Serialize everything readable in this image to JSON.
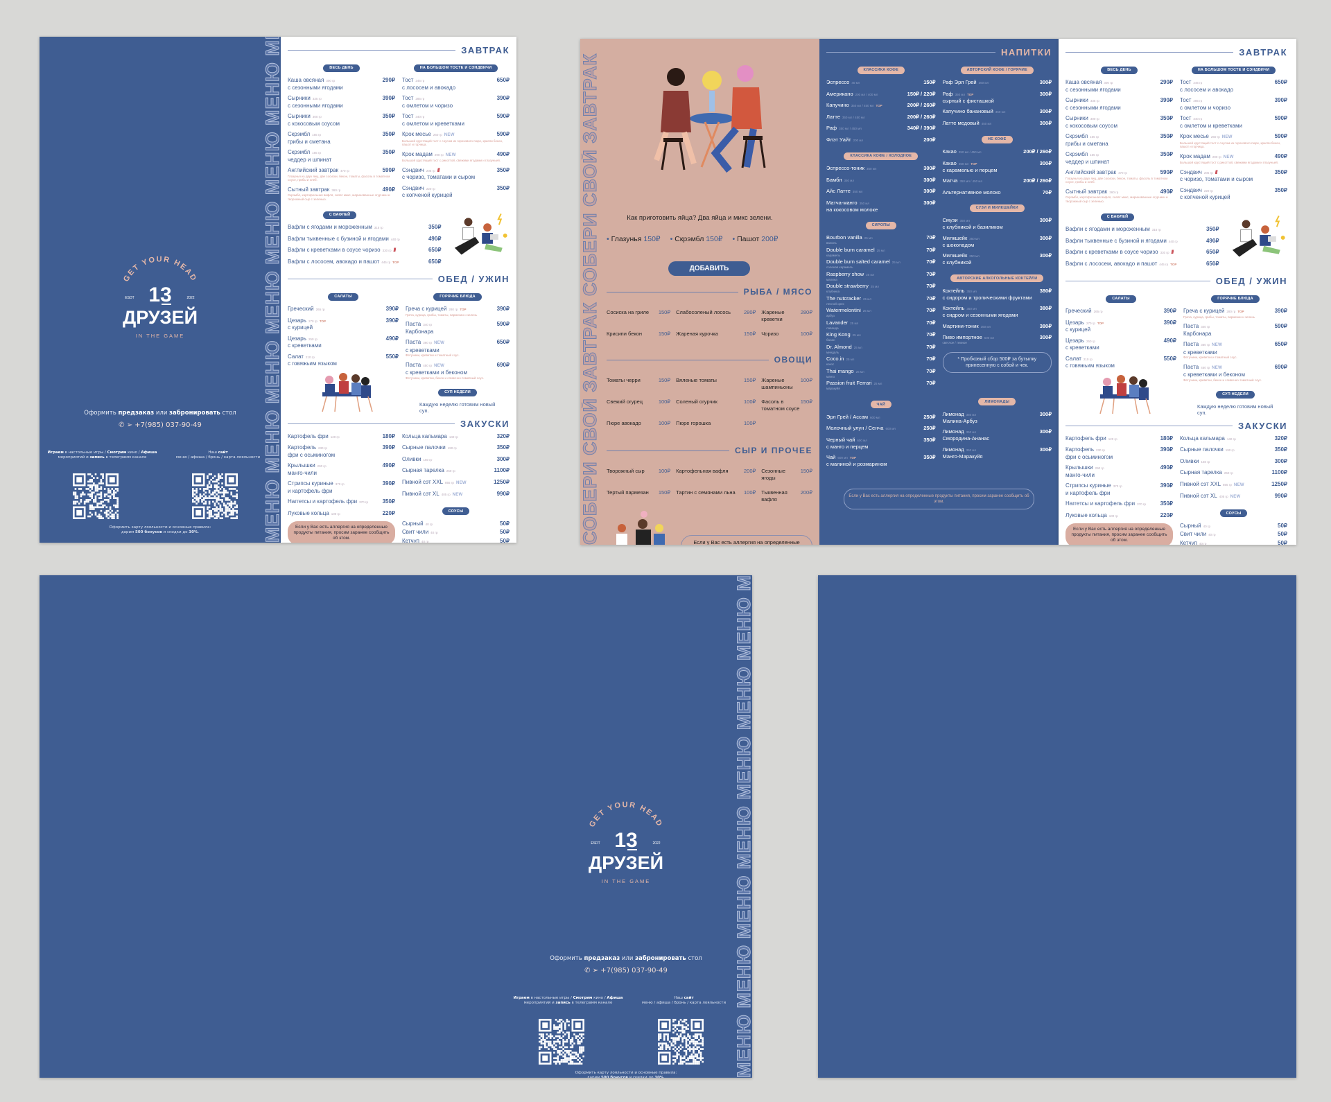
{
  "colors": {
    "brand_blue": "#3f5d92",
    "tan": "#d4aea1",
    "accent_pink": "#e4b7a8",
    "background": "#d8d8d6"
  },
  "brand": {
    "arc": "GET YOUR HEAD",
    "number": "13",
    "name": "ДРУЗЕЙ",
    "est": "ESDT",
    "year": "2022",
    "tagline": "IN THE GAME"
  },
  "strips": {
    "menu": "МЕНЮ МЕНЮ МЕНЮ МЕНЮ МЕНЮ МЕНЮ МЕНЮ МЕНЮ",
    "breakfast": "СОБЕРИ СВОЙ ЗАВТРАК СОБЕРИ СВОЙ ЗАВТРАК"
  },
  "cover": {
    "order": {
      "a": "Оформить ",
      "b": "предзаказ",
      "c": " или ",
      "d": "забронировать",
      "e": " стол"
    },
    "contact_icons": [
      "whatsapp-icon",
      "telegram-icon"
    ],
    "phone": "+7(985) 037-90-49",
    "left_caption": {
      "a": "Играем",
      "b": " в настольные игры / ",
      "c": "Смотрим",
      "d": " кино / ",
      "e": "Афиша",
      "f": " мероприятий и ",
      "g": "запись",
      "h": " в телеграмм канале"
    },
    "right_caption": {
      "a": "Наш ",
      "b": "сайт",
      "c": "меню / афиша / бронь / карта лояльности"
    },
    "loyalty": {
      "a": "Оформить карту лояльности и основные правила:",
      "b": "дарим ",
      "c": "500 бонусов",
      "d": " и скидки до ",
      "e": "30%",
      "f": "."
    }
  },
  "food_menu": {
    "breakfast": {
      "title": "ЗАВТРАК",
      "all_day": {
        "pill": "ВЕСЬ ДЕНЬ",
        "items": [
          {
            "n": "Каша овсяная",
            "w": "300 гр",
            "p": "290₽",
            "s": "с сезонными ягодами"
          },
          {
            "n": "Сырники",
            "w": "335 гр",
            "p": "390₽",
            "s": "с сезонными ягодами"
          },
          {
            "n": "Сырники",
            "w": "300 гр",
            "p": "350₽",
            "s": "с кокосовым соусом"
          },
          {
            "n": "Скрэмбл",
            "w": "165 гр",
            "p": "350₽",
            "s": "грибы и сметана"
          },
          {
            "n": "Скрэмбл",
            "w": "165 гр",
            "p": "350₽",
            "s": "чеддер и шпинат"
          },
          {
            "n": "Английский завтрак",
            "w": "470 гр",
            "p": "590₽",
            "d": "Глазунья из двух яиц, две сосиски, бекон, томаты, фасоль в томатном соусе, грибы и хлеб."
          },
          {
            "n": "Сытный завтрак",
            "w": "360 гр",
            "p": "490₽",
            "d": "Скрэмбл, картофельная вафля, салат микс, маринованные огурчики и творожный сыр с зеленью."
          }
        ]
      },
      "toast": {
        "pill": "НА БОЛЬШОМ ТОСТЕ И СЭНДВИЧИ",
        "items": [
          {
            "n": "Тост",
            "w": "245 гр",
            "p": "650₽",
            "s": "с лососем и авокадо"
          },
          {
            "n": "Тост",
            "w": "285 гр",
            "p": "390₽",
            "s": "с омлетом и чоризо"
          },
          {
            "n": "Тост",
            "w": "340 гр",
            "p": "590₽",
            "s": "с омлетом и креветками"
          },
          {
            "n": "Крок месье",
            "w": "260 гр",
            "b": "new",
            "bt": "NEW",
            "p": "590₽",
            "d": "Большой хрустящий тост с соусом из горохового пюре, криспи бекон, пашот и горчица."
          },
          {
            "n": "Крок мадам",
            "w": "290 гр",
            "b": "new",
            "bt": "NEW",
            "p": "490₽",
            "d": "Большой хрустящий тост с рикоттой, свежими ягодами и глазуньей."
          },
          {
            "n": "Сэндвич",
            "w": "205 гр",
            "b": "spicy",
            "bt": "///",
            "p": "350₽",
            "s": "с чоризо, томатами и сыром"
          },
          {
            "n": "Сэндвич",
            "w": "220 гр",
            "p": "350₽",
            "s": "с копченой курицей"
          }
        ]
      },
      "waffles": {
        "pill": "С ВАФЛЕЙ",
        "items": [
          {
            "n": "Вафли с ягодами и мороженным",
            "w": "315 гр",
            "p": "350₽"
          },
          {
            "n": "Вафли тыквенные с бузиной и ягодами",
            "w": "440 гр",
            "p": "490₽"
          },
          {
            "n": "Вафли с креветками в соусе чоризо",
            "w": "330 гр",
            "b": "spicy",
            "bt": "///",
            "p": "650₽"
          },
          {
            "n": "Вафли с лососем, авокадо и пашот",
            "w": "445 гр",
            "b": "top",
            "bt": "TOP",
            "p": "650₽"
          }
        ]
      }
    },
    "lunch": {
      "title": "ОБЕД / УЖИН",
      "salads": {
        "pill": "САЛАТЫ",
        "items": [
          {
            "n": "Греческий",
            "w": "265 гр",
            "p": "390₽"
          },
          {
            "n": "Цезарь",
            "w": "270 гр",
            "b": "top",
            "bt": "TOP",
            "p": "390₽",
            "s": "с курицей"
          },
          {
            "n": "Цезарь",
            "w": "250 гр",
            "p": "490₽",
            "s": "с креветками"
          },
          {
            "n": "Салат",
            "w": "210 гр",
            "p": "550₽",
            "s": "с говяжьим языком"
          }
        ]
      },
      "hot": {
        "pill": "ГОРЯЧИЕ БЛЮДА",
        "items": [
          {
            "n": "Греча с курицей",
            "w": "280 гр",
            "b": "top",
            "bt": "TOP",
            "p": "390₽",
            "d": "Греча, курица, грибы, томаты, пармезан и зелень"
          },
          {
            "n": "Паста",
            "w": "340 гр",
            "p": "590₽",
            "s": "Карбонара"
          },
          {
            "n": "Паста",
            "w": "360 гр",
            "b": "new",
            "bt": "NEW",
            "p": "650₽",
            "s": "с креветками",
            "d": "Фетучини, креветки и томатный соус."
          },
          {
            "n": "Паста",
            "w": "450 гр",
            "b": "new",
            "bt": "NEW",
            "p": "690₽",
            "s": "с креветками и беконом",
            "d": "Фетучини, креветки, бекон и сливочно-томатный соус."
          }
        ]
      },
      "soup": {
        "pill": "СУП НЕДЕЛИ",
        "text": "Каждую неделю готовим новый суп."
      }
    },
    "snacks": {
      "title": "ЗАКУСКИ",
      "left": {
        "items": [
          {
            "n": "Картофель фри",
            "w": "120 гр",
            "p": "180₽"
          },
          {
            "n": "Картофель",
            "w": "230 гр",
            "p": "390₽",
            "s": "фри с осьминогом"
          },
          {
            "n": "Крылышки",
            "w": "290 гр",
            "p": "490₽",
            "s": "манго-чили"
          },
          {
            "n": "Стрипсы куриные",
            "w": "370 гр",
            "p": "390₽",
            "s": "и картофель фри"
          },
          {
            "n": "Наггетсы и картофель фри",
            "w": "370 гр",
            "p": "350₽"
          },
          {
            "n": "Луковые кольца",
            "w": "100 гр",
            "p": "220₽"
          }
        ]
      },
      "right": {
        "items": [
          {
            "n": "Кольца кальмара",
            "w": "140 гр",
            "p": "320₽"
          },
          {
            "n": "Сырные палочки",
            "w": "190 гр",
            "p": "350₽"
          },
          {
            "n": "Оливки",
            "w": "150 гр",
            "p": "300₽"
          },
          {
            "n": "Сырная тарелка",
            "w": "250 гр",
            "p": "1100₽"
          },
          {
            "n": "Пивной сэт XXL",
            "w": "855 гр",
            "b": "new",
            "bt": "NEW",
            "p": "1250₽"
          },
          {
            "n": "Пивной сэт XL",
            "w": "405 гр",
            "b": "new",
            "bt": "NEW",
            "p": "990₽"
          }
        ]
      },
      "sauces": {
        "pill": "СОУСЫ",
        "items": [
          {
            "n": "Сырный",
            "w": "40 гр",
            "p": "50₽"
          },
          {
            "n": "Свит чили",
            "w": "40 гр",
            "p": "50₽"
          },
          {
            "n": "Кетчуп",
            "w": "40 гр",
            "p": "50₽"
          },
          {
            "n": "Барбекю",
            "w": "40 гр",
            "p": "50₽"
          }
        ]
      }
    },
    "allergy": "Если у Вас есть аллергия на определенные продукты питания, просим заранее сообщить об этом."
  },
  "builder": {
    "question": "Как приготовить яйца? Два яйца и микс зелени.",
    "eggs": [
      {
        "n": "Глазунья",
        "p": "150₽"
      },
      {
        "n": "Скрэмбл",
        "p": "150₽"
      },
      {
        "n": "Пашот",
        "p": "200₽"
      }
    ],
    "add_label": "ДОБАВИТЬ",
    "meat": {
      "title": "РЫБА / МЯСО",
      "items": [
        {
          "n": "Сосиска на гриле",
          "p": "150₽"
        },
        {
          "n": "Слабосоленый лосось",
          "p": "280₽"
        },
        {
          "n": "Жареные креветки",
          "p": "280₽"
        },
        {
          "n": "Крисипи бекон",
          "p": "150₽"
        },
        {
          "n": "Жареная курочка",
          "p": "150₽"
        },
        {
          "n": "Чоризо",
          "p": "100₽"
        }
      ]
    },
    "veg": {
      "title": "ОВОЩИ",
      "items": [
        {
          "n": "Томаты черри",
          "p": "150₽"
        },
        {
          "n": "Вяленые томаты",
          "p": "150₽"
        },
        {
          "n": "Жареные шампиньоны",
          "p": "100₽"
        },
        {
          "n": "Свежий огурец",
          "p": "100₽"
        },
        {
          "n": "Соленый огурчик",
          "p": "100₽"
        },
        {
          "n": "Фасоль в томатном соусе",
          "p": "150₽"
        },
        {
          "n": "Пюре авокадо",
          "p": "100₽"
        },
        {
          "n": "Пюре горошка",
          "p": "100₽"
        }
      ]
    },
    "cheese": {
      "title": "СЫР И ПРОЧЕЕ",
      "items": [
        {
          "n": "Творожный сыр",
          "p": "100₽"
        },
        {
          "n": "Картофельная вафля",
          "p": "200₽"
        },
        {
          "n": "Сезонные ягоды",
          "p": "150₽"
        },
        {
          "n": "Тертый пармезан",
          "p": "150₽"
        },
        {
          "n": "Тартин с семянами льна",
          "p": "100₽"
        },
        {
          "n": "Тыквенная вафля",
          "p": "200₽"
        }
      ]
    },
    "allergy": "Если у Вас есть аллергия на определенные продукты питания, просим заранее сообщить об этом."
  },
  "drinks": {
    "title": "НАПИТКИ",
    "classic": {
      "pill": "КЛАССИКА КОФЕ",
      "items": [
        {
          "n": "Эспрессо",
          "w": "40 мл",
          "p": "150₽"
        },
        {
          "n": "Американо",
          "w": "200 мл / 400 мл",
          "p": "150₽ / 220₽"
        },
        {
          "n": "Капучино",
          "w": "350 мл / 450 мл",
          "b": "top",
          "bt": "TOP",
          "p": "200₽ / 260₽"
        },
        {
          "n": "Латте",
          "w": "350 мл / 450 мл",
          "p": "200₽ / 260₽"
        },
        {
          "n": "Раф",
          "w": "350 мл / 450 мл",
          "p": "340₽ / 390₽"
        },
        {
          "n": "Флэт Уайт",
          "w": "200 мл",
          "p": "200₽"
        }
      ]
    },
    "cold": {
      "pill": "КЛАССИКА КОФЕ / ХОЛОДНОЕ",
      "items": [
        {
          "n": "Эспрессо-тоник",
          "w": "350 мл",
          "p": "300₽"
        },
        {
          "n": "Бамбл",
          "w": "350 мл",
          "p": "300₽"
        },
        {
          "n": "Айс Латте",
          "w": "350 мл",
          "p": "300₽"
        },
        {
          "n": "Матча-манго",
          "w": "350 мл",
          "p": "300₽",
          "s": "на кокосовом молоке"
        }
      ]
    },
    "syrups": {
      "pill": "СИРОПЫ",
      "items": [
        {
          "n": "Bourbon vanilla",
          "w": "25 мл",
          "p": "70₽",
          "d": "ваниль"
        },
        {
          "n": "Double burn caramel",
          "w": "25 мл",
          "p": "70₽",
          "d": "карамель"
        },
        {
          "n": "Double burn salted caramel",
          "w": "25 мл",
          "p": "70₽",
          "d": "соленая карамель"
        },
        {
          "n": "Raspberry show",
          "w": "25 мл",
          "p": "70₽",
          "d": "малина"
        },
        {
          "n": "Double strawberry",
          "w": "25 мл",
          "p": "70₽",
          "d": "клубника"
        },
        {
          "n": "The nutcracker",
          "w": "25 мл",
          "p": "70₽",
          "d": "лесной орех"
        },
        {
          "n": "Watermelontini",
          "w": "25 мл",
          "p": "70₽",
          "d": "арбуз"
        },
        {
          "n": "Lavander",
          "w": "25 мл",
          "p": "70₽",
          "d": "лаванда"
        },
        {
          "n": "King Kong",
          "w": "25 мл",
          "p": "70₽",
          "d": "банан"
        },
        {
          "n": "Dr. Almond",
          "w": "25 мл",
          "p": "70₽",
          "d": "миндаль"
        },
        {
          "n": "Coco.in",
          "w": "25 мл",
          "p": "70₽",
          "d": "кокос"
        },
        {
          "n": "Thai mango",
          "w": "25 мл",
          "p": "70₽",
          "d": "манго"
        },
        {
          "n": "Passion fruit Ferrari",
          "w": "25 мл",
          "p": "70₽",
          "d": "маракуйя"
        }
      ]
    },
    "tea": {
      "pill": "ЧАЙ",
      "items": [
        {
          "n": "Эрл Грей / Ассам",
          "w": "600 мл",
          "p": "250₽"
        },
        {
          "n": "Молочный улун / Сенча",
          "w": "600 мл",
          "p": "250₽"
        },
        {
          "n": "Черный чай",
          "w": "600 мл",
          "p": "350₽",
          "s": "с манго и перцем"
        },
        {
          "n": "Чай",
          "w": "600 мл",
          "b": "top",
          "bt": "TOP",
          "p": "350₽",
          "s": "с малиной и розмарином"
        }
      ]
    },
    "author": {
      "pill": "АВТОРСКИЙ КОФЕ / ГОРЯЧИЕ",
      "items": [
        {
          "n": "Раф Эрл Грей",
          "w": "350 мл",
          "p": "300₽"
        },
        {
          "n": "Раф",
          "w": "350 мл",
          "b": "top",
          "bt": "TOP",
          "p": "300₽",
          "s": "сырный с фисташкой"
        },
        {
          "n": "Капучино банановый",
          "w": "350 мл",
          "p": "300₽"
        },
        {
          "n": "Латте медовый",
          "w": "450 мл",
          "p": "300₽"
        }
      ]
    },
    "notcoffee": {
      "pill": "НЕ КОФЕ",
      "items": [
        {
          "n": "Какао",
          "w": "350 мл / 450 мл",
          "p": "200₽ / 260₽"
        },
        {
          "n": "Какао",
          "w": "350 мл",
          "b": "top",
          "bt": "TOP",
          "p": "300₽",
          "s": "с карамелью и перцем"
        },
        {
          "n": "Матча",
          "w": "350 мл / 450 мл",
          "p": "200₽ / 260₽"
        },
        {
          "n": "Альтернативное молоко",
          "p": "70₽"
        }
      ]
    },
    "smoothie": {
      "pill": "СУЗИ И МИЛКШЕЙКИ",
      "items": [
        {
          "n": "Смузи",
          "w": "350 мл",
          "p": "300₽",
          "s": "с клубникой и базиликом"
        },
        {
          "n": "Милкшейк",
          "w": "350 мл",
          "p": "300₽",
          "s": "с шоколадом"
        },
        {
          "n": "Милкшейк",
          "w": "350 мл",
          "p": "300₽",
          "s": "с клубникой"
        }
      ]
    },
    "cocktails": {
      "pill": "АВТОРСКИЕ АЛКОГОЛЬНЫЕ КОКТЕЙЛИ",
      "items": [
        {
          "n": "Коктейль",
          "w": "350 мл",
          "p": "380₽",
          "s": "с сидором и тропическими фруктами"
        },
        {
          "n": "Коктейль",
          "w": "350 мл",
          "p": "380₽",
          "s": "с сидром и сезонными ягодами"
        },
        {
          "n": "Мартини-тоник",
          "w": "350 мл",
          "p": "380₽"
        },
        {
          "n": "Пиво импортное",
          "w": "500 мл",
          "p": "300₽",
          "d": "светлое / темное"
        }
      ]
    },
    "corkage": "* Пробковый сбор 500₽ за бутылку принесенную с собой и чек.",
    "lemonades": {
      "pill": "ЛИМОНАДЫ",
      "items": [
        {
          "n": "Лимонад",
          "w": "350 мл",
          "p": "300₽",
          "s": "Малина-Арбуз"
        },
        {
          "n": "Лимонад",
          "w": "350 мл",
          "p": "300₽",
          "s": "Смородина-Ананас"
        },
        {
          "n": "Лимонад",
          "w": "350 мл",
          "p": "300₽",
          "s": "Манго-Маракуйя"
        }
      ]
    },
    "allergy": "Если у Вас есть аллергия на определенные продукты питания, просим заранее сообщить об этом."
  }
}
